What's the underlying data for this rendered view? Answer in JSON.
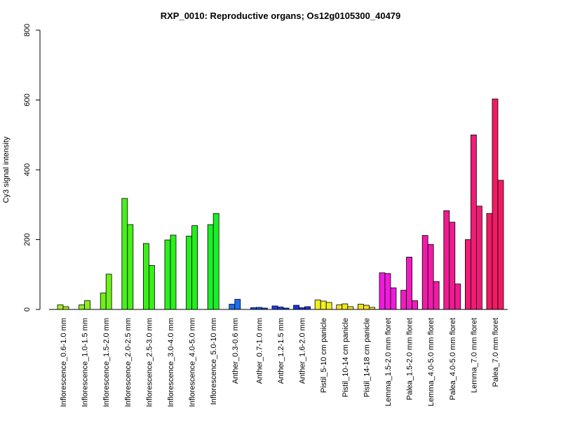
{
  "chart_data": {
    "type": "bar",
    "title": "RXP_0010: Reproductive organs; Os12g0105300_40479",
    "xlabel": "",
    "ylabel": "Cy3 signal intensity",
    "ylim": [
      0,
      800
    ],
    "yticks": [
      0,
      200,
      400,
      600,
      800
    ],
    "grid": false,
    "legend": "none",
    "categories": [
      "Inflorescence_0.6-1.0 mm",
      "Inflorescence_1.0-1.5 mm",
      "Inflorescence_1.5-2.0 mm",
      "Inflorescence_2.0-2.5 mm",
      "Inflorescence_2.5-3.0 mm",
      "Inflorescence_3.0-4.0 mm",
      "Inflorescence_4.0-5.0 mm",
      "Inflorescence_5.0-10 mm",
      "Anther_0.3-0.6 mm",
      "Anther_0.7-1.0 mm",
      "Anther_1.2-1.5 mm",
      "Anther_1.6-2.0 mm",
      "Pistil_5-10 cm panicle",
      "Pistil_10-14 cm panicle",
      "Pistil_14-18 cm panicle",
      "Lemma_1.5-2.0 mm floret",
      "Palea_1.5-2.0 mm floret",
      "Lemma_4.0-5.0 mm floret",
      "Palea_4.0-5.0 mm floret",
      "Lemma_7.0 mm floret",
      "Palea_7.0 mm floret"
    ],
    "groups": [
      {
        "values": [
          13,
          8
        ],
        "color": "#a6f01b"
      },
      {
        "values": [
          13,
          25
        ],
        "color": "#8bf01b"
      },
      {
        "values": [
          47,
          101
        ],
        "color": "#6ef01b"
      },
      {
        "values": [
          318,
          243
        ],
        "color": "#48ef1b"
      },
      {
        "values": [
          189,
          126
        ],
        "color": "#39ef1b"
      },
      {
        "values": [
          199,
          213
        ],
        "color": "#2cef1b"
      },
      {
        "values": [
          210,
          240
        ],
        "color": "#22ef1b"
      },
      {
        "values": [
          243,
          275
        ],
        "color": "#1bef27"
      },
      {
        "values": [
          15,
          29
        ],
        "color": "#1b6ef0"
      },
      {
        "values": [
          5,
          6,
          4
        ],
        "color": "#1b55f0"
      },
      {
        "values": [
          10,
          7,
          4
        ],
        "color": "#1b40f0"
      },
      {
        "values": [
          12,
          5,
          8
        ],
        "color": "#1b33f0"
      },
      {
        "values": [
          27,
          24,
          20
        ],
        "color": "#f0f01b"
      },
      {
        "values": [
          13,
          16,
          8
        ],
        "color": "#f0e81b"
      },
      {
        "values": [
          15,
          12,
          6
        ],
        "color": "#f0e01b"
      },
      {
        "values": [
          105,
          103,
          62
        ],
        "color": "#f01bdc"
      },
      {
        "values": [
          55,
          150,
          25
        ],
        "color": "#f01bc0"
      },
      {
        "values": [
          212,
          186,
          80
        ],
        "color": "#f01ba8"
      },
      {
        "values": [
          283,
          250,
          73
        ],
        "color": "#f01b92"
      },
      {
        "values": [
          200,
          500,
          296
        ],
        "color": "#f01b76"
      },
      {
        "values": [
          275,
          603,
          370
        ],
        "color": "#f01b62"
      }
    ]
  }
}
